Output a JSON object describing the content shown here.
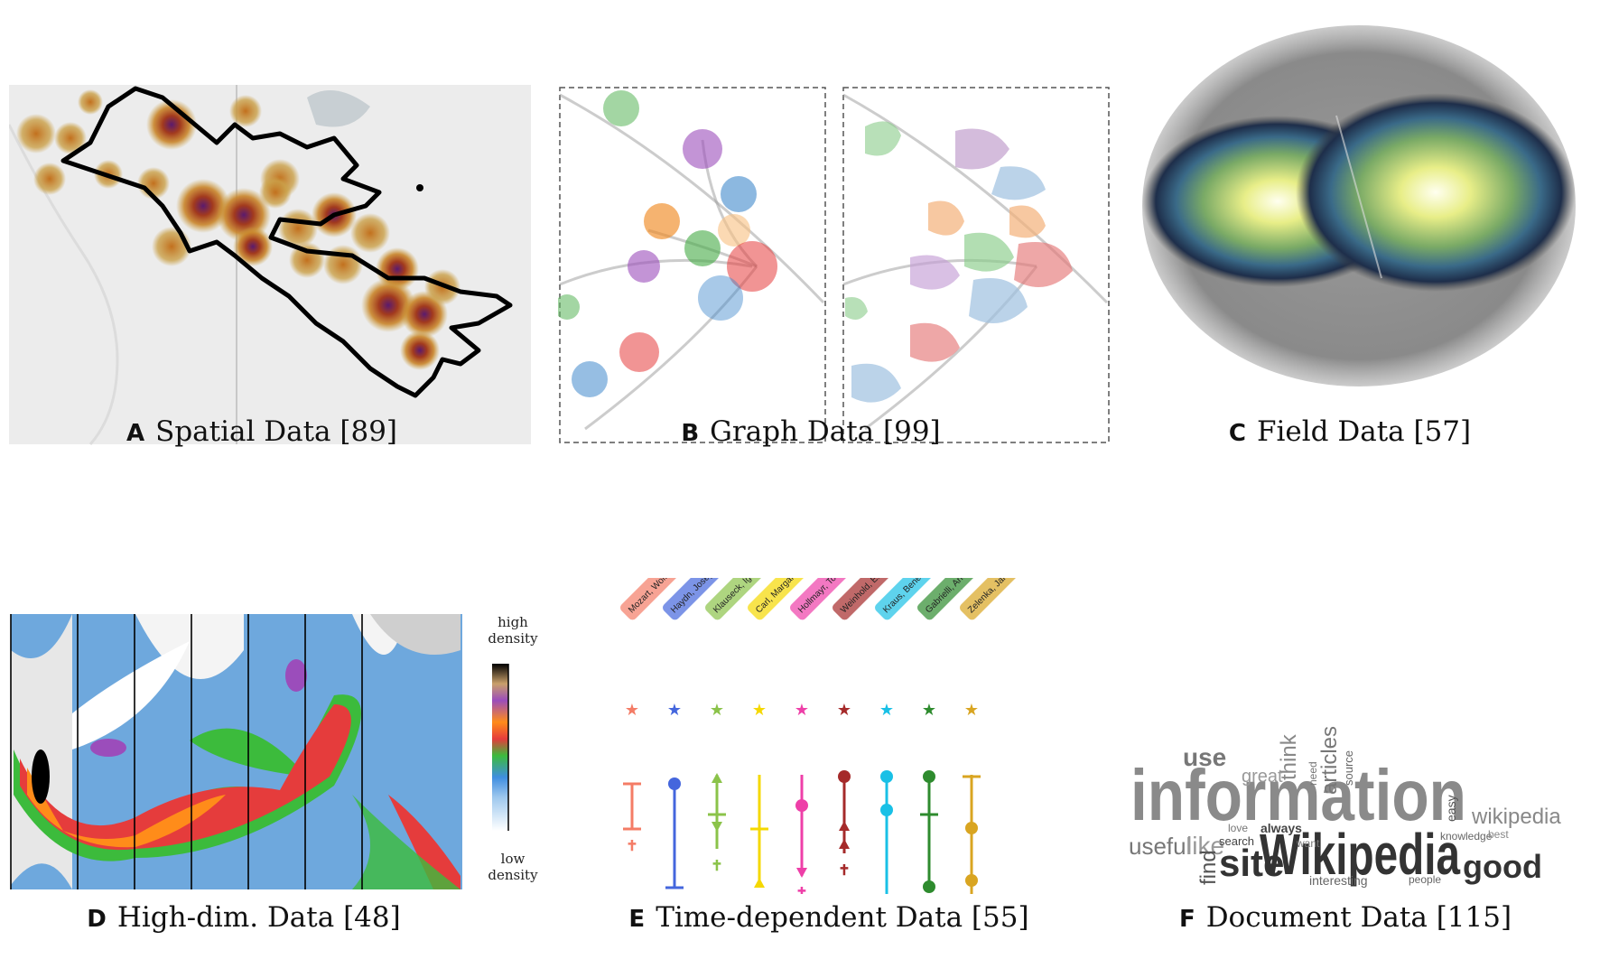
{
  "panels": [
    {
      "letter": "A",
      "label": "Spatial Data [89]"
    },
    {
      "letter": "B",
      "label": "Graph Data [99]"
    },
    {
      "letter": "C",
      "label": "Field Data [57]"
    },
    {
      "letter": "D",
      "label": "High-dim. Data [48]"
    },
    {
      "letter": "E",
      "label": "Time-dependent Data [55]"
    },
    {
      "letter": "F",
      "label": "Document Data [115]"
    }
  ],
  "density_legend": {
    "high": "high",
    "high2": "density",
    "low": "low",
    "low2": "density"
  },
  "timeline_people": [
    {
      "name": "Mozart, Wolfgang Amadeus",
      "color": "#f47c66"
    },
    {
      "name": "Haydn, Joseph",
      "color": "#4466dd"
    },
    {
      "name": "Klauseck, Ignaz",
      "color": "#8bc34a"
    },
    {
      "name": "Carl, Margarethe",
      "color": "#f5d800"
    },
    {
      "name": "Hollmayr, Tobias",
      "color": "#ee3fa8"
    },
    {
      "name": "Weinhold, Elisabeth",
      "color": "#a52a2a"
    },
    {
      "name": "Kraus, Benedikt",
      "color": "#19c0e6"
    },
    {
      "name": "Gabrielli, Andrea",
      "color": "#2e8b2e"
    },
    {
      "name": "Zelenka, Jan Dismas",
      "color": "#d9a521"
    }
  ],
  "wordcloud": [
    "information",
    "Wikipedia",
    "site",
    "good",
    "use",
    "useful",
    "like",
    "think",
    "articles",
    "wikipedia",
    "find",
    "great",
    "search",
    "always",
    "easy",
    "interesting",
    "knowledge",
    "source",
    "people",
    "best",
    "need",
    "love",
    "want"
  ]
}
